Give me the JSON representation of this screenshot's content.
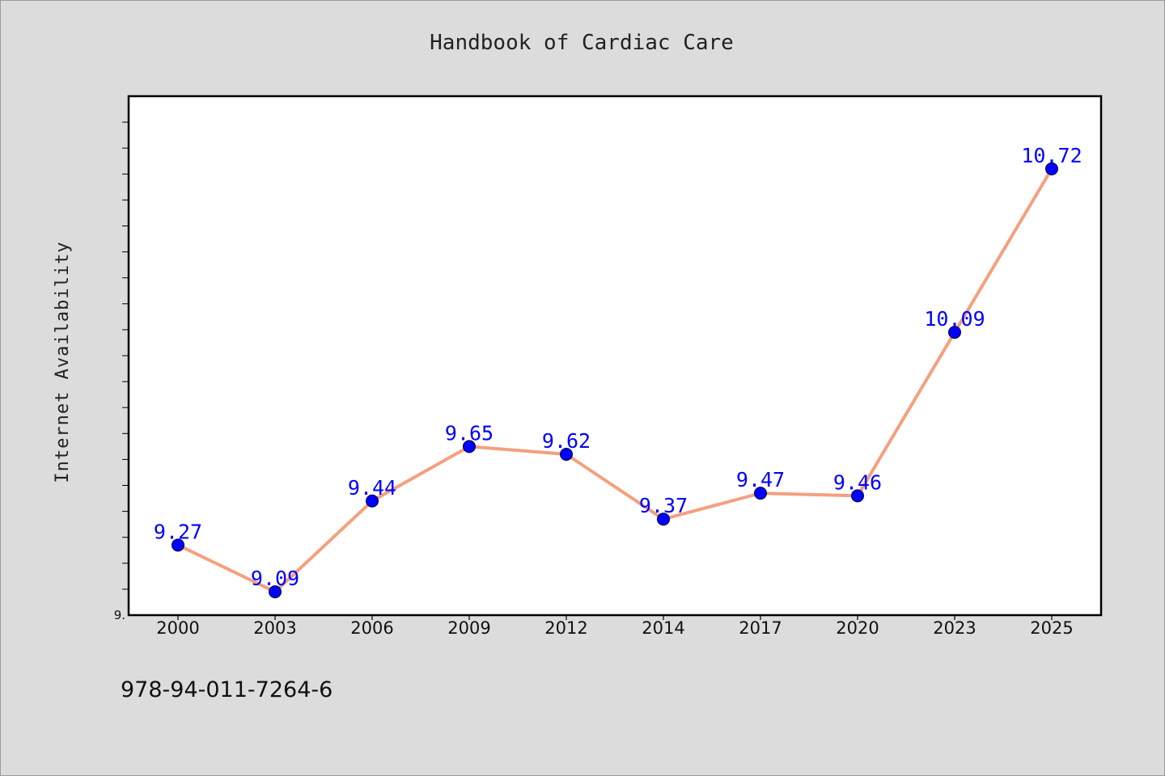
{
  "chart_data": {
    "type": "line",
    "title": "Handbook of Cardiac Care",
    "xlabel": "",
    "ylabel": "Internet Availability",
    "categories": [
      "2000",
      "2003",
      "2006",
      "2009",
      "2012",
      "2014",
      "2017",
      "2020",
      "2023",
      "2025"
    ],
    "series": [
      {
        "values": [
          9.27,
          9.09,
          9.44,
          9.65,
          9.62,
          9.37,
          9.47,
          9.46,
          10.09,
          10.72
        ]
      }
    ],
    "ylim": [
      9.0,
      11.0
    ],
    "y_tick_label": "9.",
    "grid": false,
    "legend": "none",
    "line_color": "#f4a07e",
    "marker_color": "#0000ff",
    "label_color": "#0000ff"
  },
  "footer": {
    "isbn": "978-94-011-7264-6"
  }
}
